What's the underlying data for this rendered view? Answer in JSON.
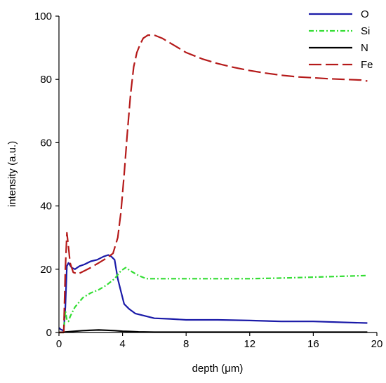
{
  "chart_data": {
    "type": "line",
    "title": "",
    "xlabel": "depth (μm)",
    "ylabel": "intensity (a.u.)",
    "xlim": [
      0,
      20
    ],
    "ylim": [
      0,
      100
    ],
    "x_ticks": [
      0,
      4,
      8,
      12,
      16,
      20
    ],
    "y_ticks": [
      0,
      20,
      40,
      60,
      80,
      100
    ],
    "grid": false,
    "legend_position": "top-right",
    "series": [
      {
        "name": "O",
        "color": "#1a1aa8",
        "style": "solid",
        "x": [
          0.0,
          0.1,
          0.2,
          0.3,
          0.4,
          0.5,
          0.6,
          0.8,
          1.0,
          1.3,
          1.6,
          2.0,
          2.4,
          2.8,
          3.1,
          3.3,
          3.5,
          3.7,
          3.9,
          4.1,
          4.4,
          4.8,
          5.2,
          5.6,
          6.0,
          7.0,
          8.0,
          10.0,
          12.0,
          14.0,
          16.0,
          18.0,
          19.4
        ],
        "y": [
          1.5,
          1.0,
          0.8,
          0.5,
          8.0,
          21.0,
          22.0,
          20.5,
          20.0,
          21.0,
          21.5,
          22.5,
          23.0,
          24.0,
          24.5,
          24.0,
          23.0,
          17.0,
          13.0,
          9.0,
          7.5,
          6.0,
          5.5,
          5.0,
          4.5,
          4.3,
          4.0,
          4.0,
          3.8,
          3.5,
          3.5,
          3.2,
          3.0
        ]
      },
      {
        "name": "Si",
        "color": "#33dd33",
        "style": "dashdot",
        "x": [
          0.0,
          0.3,
          0.4,
          0.5,
          0.6,
          0.7,
          1.0,
          1.5,
          2.0,
          2.5,
          3.0,
          3.5,
          3.9,
          4.2,
          4.5,
          5.0,
          5.5,
          6.0,
          7.0,
          8.0,
          10.0,
          12.0,
          14.0,
          16.0,
          18.0,
          19.4
        ],
        "y": [
          0.0,
          0.0,
          7.0,
          4.0,
          3.5,
          5.0,
          8.0,
          11.0,
          12.5,
          13.5,
          15.0,
          17.0,
          19.5,
          20.5,
          19.5,
          18.0,
          17.0,
          17.0,
          17.0,
          17.0,
          17.0,
          17.0,
          17.2,
          17.5,
          17.8,
          18.0
        ]
      },
      {
        "name": "N",
        "color": "#000000",
        "style": "solid",
        "x": [
          0.0,
          0.3,
          0.5,
          1.0,
          1.5,
          2.0,
          2.5,
          3.0,
          3.5,
          4.0,
          4.5,
          5.0,
          6.0,
          8.0,
          10.0,
          12.0,
          14.0,
          16.0,
          19.4
        ],
        "y": [
          0.0,
          0.1,
          0.2,
          0.4,
          0.6,
          0.7,
          0.8,
          0.7,
          0.6,
          0.4,
          0.3,
          0.2,
          0.1,
          0.1,
          0.1,
          0.1,
          0.1,
          0.1,
          0.1
        ]
      },
      {
        "name": "Fe",
        "color": "#b51a1a",
        "style": "dashed",
        "x": [
          0.0,
          0.3,
          0.4,
          0.5,
          0.6,
          0.7,
          0.9,
          1.2,
          1.6,
          2.0,
          2.5,
          3.0,
          3.4,
          3.7,
          3.9,
          4.1,
          4.3,
          4.5,
          4.7,
          4.9,
          5.1,
          5.3,
          5.6,
          6.0,
          6.5,
          7.0,
          7.5,
          8.0,
          9.0,
          10.0,
          11.0,
          12.0,
          13.0,
          14.0,
          15.0,
          16.0,
          17.0,
          18.0,
          19.0,
          19.4
        ],
        "y": [
          0.0,
          0.0,
          20.0,
          31.5,
          27.0,
          22.0,
          19.0,
          18.5,
          19.5,
          20.5,
          22.0,
          23.5,
          25.0,
          30.0,
          38.0,
          50.0,
          63.0,
          75.0,
          84.0,
          88.5,
          91.0,
          93.0,
          94.0,
          94.0,
          93.0,
          91.5,
          90.0,
          88.5,
          86.5,
          85.0,
          83.8,
          82.8,
          82.0,
          81.3,
          80.8,
          80.5,
          80.2,
          80.0,
          79.8,
          79.5
        ]
      }
    ]
  }
}
